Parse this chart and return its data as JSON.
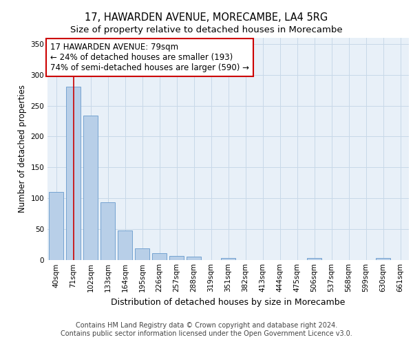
{
  "title_line1": "17, HAWARDEN AVENUE, MORECAMBE, LA4 5RG",
  "title_line2": "Size of property relative to detached houses in Morecambe",
  "xlabel": "Distribution of detached houses by size in Morecambe",
  "ylabel": "Number of detached properties",
  "categories": [
    "40sqm",
    "71sqm",
    "102sqm",
    "133sqm",
    "164sqm",
    "195sqm",
    "226sqm",
    "257sqm",
    "288sqm",
    "319sqm",
    "351sqm",
    "382sqm",
    "413sqm",
    "444sqm",
    "475sqm",
    "506sqm",
    "537sqm",
    "568sqm",
    "599sqm",
    "630sqm",
    "661sqm"
  ],
  "values": [
    110,
    281,
    234,
    93,
    48,
    18,
    11,
    6,
    5,
    0,
    3,
    0,
    0,
    0,
    0,
    3,
    0,
    0,
    0,
    3,
    0
  ],
  "bar_color": "#b8cfe8",
  "bar_edge_color": "#6699cc",
  "vline_x": 1.0,
  "vline_color": "#cc0000",
  "annotation_line1": "17 HAWARDEN AVENUE: 79sqm",
  "annotation_line2": "← 24% of detached houses are smaller (193)",
  "annotation_line3": "74% of semi-detached houses are larger (590) →",
  "annotation_box_color": "white",
  "annotation_box_edge_color": "#cc0000",
  "ylim": [
    0,
    360
  ],
  "yticks": [
    0,
    50,
    100,
    150,
    200,
    250,
    300,
    350
  ],
  "grid_color": "#c8d8e8",
  "background_color": "#e8f0f8",
  "footer_text": "Contains HM Land Registry data © Crown copyright and database right 2024.\nContains public sector information licensed under the Open Government Licence v3.0.",
  "title_fontsize": 10.5,
  "subtitle_fontsize": 9.5,
  "tick_fontsize": 7.5,
  "ylabel_fontsize": 8.5,
  "xlabel_fontsize": 9,
  "annotation_fontsize": 8.5,
  "footer_fontsize": 7
}
